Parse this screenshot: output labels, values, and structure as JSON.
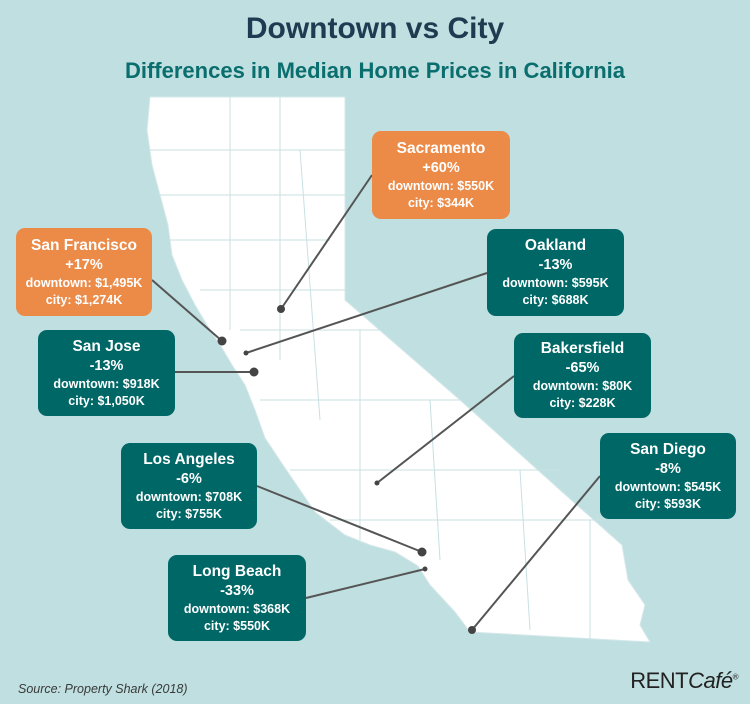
{
  "title": "Downtown vs City",
  "subtitle": "Differences in Median Home Prices in California",
  "colors": {
    "background": "#bfdfe0",
    "decrease": "#006767",
    "increase": "#ec8a47",
    "title": "#1f3b52"
  },
  "cities": [
    {
      "name": "Sacramento",
      "change": "+60%",
      "downtown": "downtown: $550K",
      "city": "city: $344K",
      "trend": "increase"
    },
    {
      "name": "San Francisco",
      "change": "+17%",
      "downtown": "downtown: $1,495K",
      "city": "city: $1,274K",
      "trend": "increase"
    },
    {
      "name": "Oakland",
      "change": "-13%",
      "downtown": "downtown: $595K",
      "city": "city: $688K",
      "trend": "decrease"
    },
    {
      "name": "San Jose",
      "change": "-13%",
      "downtown": "downtown: $918K",
      "city": "city: $1,050K",
      "trend": "decrease"
    },
    {
      "name": "Bakersfield",
      "change": "-65%",
      "downtown": "downtown: $80K",
      "city": "city: $228K",
      "trend": "decrease"
    },
    {
      "name": "Los Angeles",
      "change": "-6%",
      "downtown": "downtown: $708K",
      "city": "city: $755K",
      "trend": "decrease"
    },
    {
      "name": "San Diego",
      "change": "-8%",
      "downtown": "downtown: $545K",
      "city": "city: $593K",
      "trend": "decrease"
    },
    {
      "name": "Long Beach",
      "change": "-33%",
      "downtown": "downtown: $368K",
      "city": "city: $550K",
      "trend": "decrease"
    }
  ],
  "source": "Source: Property Shark (2018)",
  "logo": {
    "main": "RENT",
    "accent": "Café",
    "mark": "®"
  }
}
